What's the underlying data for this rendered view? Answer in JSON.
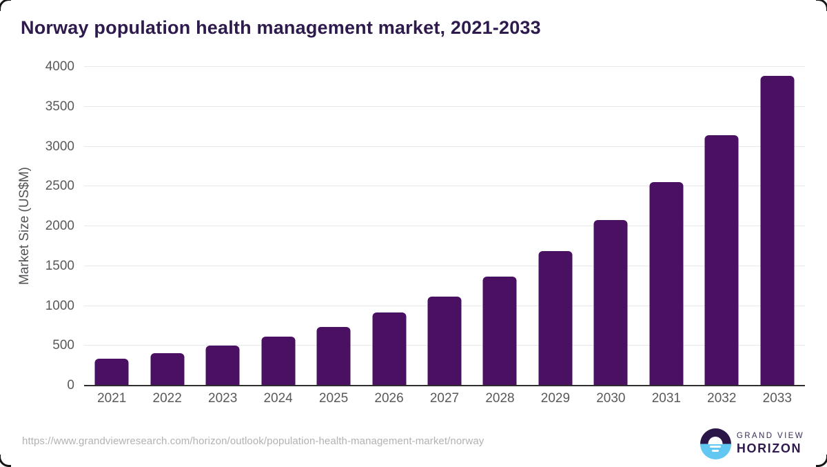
{
  "header": {
    "title": "Norway population health management market, 2021-2033"
  },
  "chart_data": {
    "type": "bar",
    "title": "Norway population health management market, 2021-2033",
    "categories": [
      "2021",
      "2022",
      "2023",
      "2024",
      "2025",
      "2026",
      "2027",
      "2028",
      "2029",
      "2030",
      "2031",
      "2032",
      "2033"
    ],
    "values": [
      335,
      405,
      500,
      615,
      740,
      915,
      1120,
      1370,
      1685,
      2080,
      2550,
      3140,
      3885
    ],
    "xlabel": "",
    "ylabel": "Market Size (US$M)",
    "ylim": [
      0,
      4000
    ],
    "ytick_step": 500,
    "grid": true,
    "legend": false,
    "bar_color": "#4a1162"
  },
  "colors": {
    "bar": "#4a1162",
    "title_text": "#2e1a4c",
    "tick_text": "#58595b",
    "gridline": "#e8e8ea",
    "axis_line": "#2e2e2e",
    "url_text": "#b2b2b2",
    "logo_dark_purple": "#2a1747",
    "logo_light_blue": "#62c8f2"
  },
  "footer": {
    "source_url": "https://www.grandviewresearch.com/horizon/outlook/population-health-management-market/norway",
    "logo": {
      "line1": "GRAND VIEW",
      "line2": "HORIZON",
      "icon": "sun-horizon-circle-icon"
    }
  }
}
